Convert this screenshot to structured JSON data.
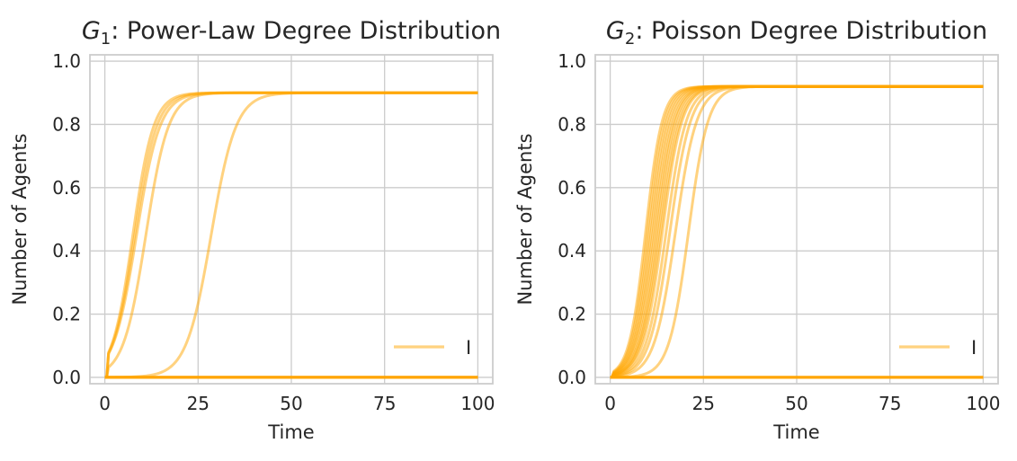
{
  "chart_data": [
    {
      "type": "line",
      "title_symbol": "G",
      "title_subscript": "1",
      "title_rest": ": Power-Law Degree Distribution",
      "xlabel": "Time",
      "ylabel": "Number of Agents",
      "xlim": [
        -4,
        104
      ],
      "ylim": [
        -0.02,
        1.02
      ],
      "xticks": [
        "0",
        "25",
        "50",
        "75",
        "100"
      ],
      "yticks": [
        "0.0",
        "0.2",
        "0.4",
        "0.6",
        "0.8",
        "1.0"
      ],
      "grid": true,
      "legend": {
        "position": "bottom-right",
        "entries": [
          "I"
        ]
      },
      "line_color": "#FFA500",
      "plateau": 0.9,
      "x": [
        0,
        100
      ],
      "series": [
        {
          "values": [
            0.0,
            0.0
          ],
          "kind": "flat"
        },
        {
          "values": [
            0.0,
            0.0
          ],
          "kind": "flat"
        },
        {
          "values": [
            0.0,
            0.0
          ],
          "kind": "flat"
        },
        {
          "values": [
            0.0,
            0.0
          ],
          "kind": "flat"
        },
        {
          "midpoint": 7.5,
          "rate": 0.36,
          "plateau": 0.9,
          "kind": "sigmoid"
        },
        {
          "midpoint": 8.0,
          "rate": 0.34,
          "plateau": 0.9,
          "kind": "sigmoid"
        },
        {
          "midpoint": 8.5,
          "rate": 0.32,
          "plateau": 0.9,
          "kind": "sigmoid"
        },
        {
          "midpoint": 11.0,
          "rate": 0.33,
          "plateau": 0.9,
          "kind": "sigmoid"
        },
        {
          "midpoint": 28.5,
          "rate": 0.3,
          "plateau": 0.9,
          "kind": "sigmoid"
        }
      ]
    },
    {
      "type": "line",
      "title_symbol": "G",
      "title_subscript": "2",
      "title_rest": ": Poisson Degree Distribution",
      "xlabel": "Time",
      "ylabel": "Number of Agents",
      "xlim": [
        -4,
        104
      ],
      "ylim": [
        -0.02,
        1.02
      ],
      "xticks": [
        "0",
        "25",
        "50",
        "75",
        "100"
      ],
      "yticks": [
        "0.0",
        "0.2",
        "0.4",
        "0.6",
        "0.8",
        "1.0"
      ],
      "grid": true,
      "legend": {
        "position": "bottom-right",
        "entries": [
          "I"
        ]
      },
      "line_color": "#FFA500",
      "plateau": 0.92,
      "x": [
        0,
        100
      ],
      "series": [
        {
          "values": [
            0.0,
            0.0
          ],
          "kind": "flat"
        },
        {
          "values": [
            0.0,
            0.0
          ],
          "kind": "flat"
        },
        {
          "values": [
            0.0,
            0.0
          ],
          "kind": "flat"
        },
        {
          "midpoint": 9.5,
          "rate": 0.45,
          "plateau": 0.92,
          "kind": "sigmoid"
        },
        {
          "midpoint": 10.0,
          "rate": 0.44,
          "plateau": 0.92,
          "kind": "sigmoid"
        },
        {
          "midpoint": 10.5,
          "rate": 0.43,
          "plateau": 0.92,
          "kind": "sigmoid"
        },
        {
          "midpoint": 11.0,
          "rate": 0.42,
          "plateau": 0.92,
          "kind": "sigmoid"
        },
        {
          "midpoint": 11.5,
          "rate": 0.41,
          "plateau": 0.92,
          "kind": "sigmoid"
        },
        {
          "midpoint": 12.0,
          "rate": 0.4,
          "plateau": 0.92,
          "kind": "sigmoid"
        },
        {
          "midpoint": 12.5,
          "rate": 0.4,
          "plateau": 0.92,
          "kind": "sigmoid"
        },
        {
          "midpoint": 13.0,
          "rate": 0.39,
          "plateau": 0.92,
          "kind": "sigmoid"
        },
        {
          "midpoint": 13.5,
          "rate": 0.38,
          "plateau": 0.92,
          "kind": "sigmoid"
        },
        {
          "midpoint": 14.0,
          "rate": 0.38,
          "plateau": 0.92,
          "kind": "sigmoid"
        },
        {
          "midpoint": 15.0,
          "rate": 0.37,
          "plateau": 0.92,
          "kind": "sigmoid"
        },
        {
          "midpoint": 16.0,
          "rate": 0.36,
          "plateau": 0.92,
          "kind": "sigmoid"
        },
        {
          "midpoint": 17.5,
          "rate": 0.35,
          "plateau": 0.92,
          "kind": "sigmoid"
        },
        {
          "midpoint": 21.0,
          "rate": 0.38,
          "plateau": 0.92,
          "kind": "sigmoid"
        }
      ]
    }
  ]
}
